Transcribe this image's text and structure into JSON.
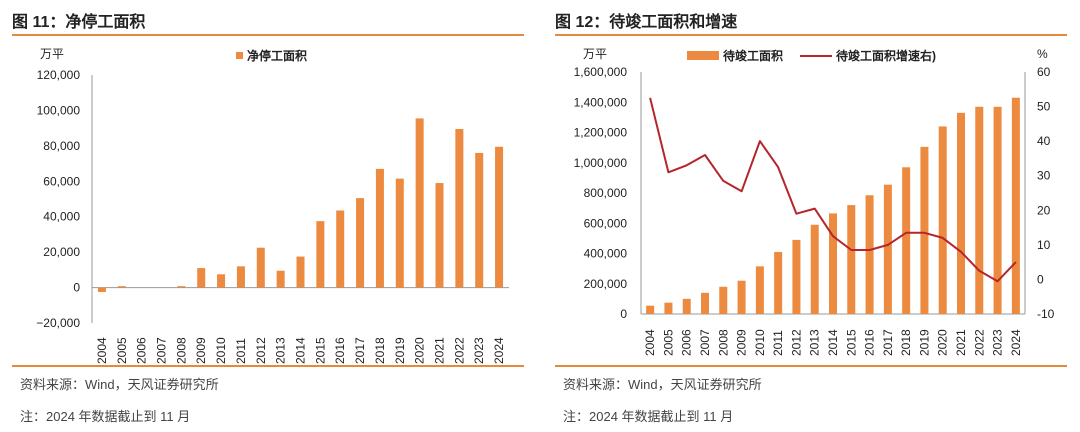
{
  "colors": {
    "bar": "#ec8a3f",
    "line": "#b5262c",
    "accent_rule": "#e58a3a",
    "axis": "#999999"
  },
  "chart_data": [
    {
      "type": "bar",
      "title": "图 11：净停工面积",
      "ylabel": "万平",
      "ylim": [
        -20000,
        120000
      ],
      "yticks": [
        "120,000",
        "100,000",
        "80,000",
        "60,000",
        "40,000",
        "20,000",
        "0",
        "−20,000"
      ],
      "yticks_values": [
        120000,
        100000,
        80000,
        60000,
        40000,
        20000,
        0,
        -20000
      ],
      "categories": [
        "2004",
        "2005",
        "2006",
        "2007",
        "2008",
        "2009",
        "2010",
        "2011",
        "2012",
        "2013",
        "2014",
        "2015",
        "2016",
        "2017",
        "2018",
        "2019",
        "2020",
        "2021",
        "2022",
        "2023",
        "2024"
      ],
      "series": [
        {
          "name": "净停工面积",
          "values": [
            -2500,
            800,
            0,
            0,
            800,
            11000,
            7500,
            12000,
            22500,
            9500,
            17500,
            37500,
            43500,
            50500,
            67000,
            61500,
            95500,
            59000,
            89500,
            76000,
            79500
          ]
        }
      ],
      "legend": [
        "净停工面积"
      ],
      "source": "资料来源：Wind，天风证券研究所",
      "note": "注：2024 年数据截止到 11 月"
    },
    {
      "type": "bar+line",
      "title": "图 12：待竣工面积和增速",
      "ylabel": "万平",
      "ylabel_right": "%",
      "ylim": [
        0,
        1600000
      ],
      "ylim_right": [
        -10,
        60
      ],
      "yticks": [
        "1,600,000",
        "1,400,000",
        "1,200,000",
        "1,000,000",
        "800,000",
        "600,000",
        "400,000",
        "200,000",
        "0"
      ],
      "yticks_values": [
        1600000,
        1400000,
        1200000,
        1000000,
        800000,
        600000,
        400000,
        200000,
        0
      ],
      "yticks_right": [
        "60",
        "50",
        "40",
        "30",
        "20",
        "10",
        "0",
        "-10"
      ],
      "yticks_right_values": [
        60,
        50,
        40,
        30,
        20,
        10,
        0,
        -10
      ],
      "categories": [
        "2004",
        "2005",
        "2006",
        "2007",
        "2008",
        "2009",
        "2010",
        "2011",
        "2012",
        "2013",
        "2014",
        "2015",
        "2016",
        "2017",
        "2018",
        "2019",
        "2020",
        "2021",
        "2022",
        "2023",
        "2024"
      ],
      "series": [
        {
          "name": "待竣工面积",
          "type": "bar",
          "axis": "left",
          "values": [
            55000,
            75000,
            100000,
            140000,
            180000,
            220000,
            315000,
            410000,
            490000,
            590000,
            665000,
            720000,
            785000,
            855000,
            970000,
            1105000,
            1240000,
            1330000,
            1370000,
            1370000,
            1430000
          ]
        },
        {
          "name": "待竣工面积增速右)",
          "type": "line",
          "axis": "right",
          "values": [
            52.5,
            31,
            33,
            36,
            28.5,
            25.5,
            40,
            32.5,
            19,
            20.5,
            12.5,
            8.5,
            8.5,
            10,
            13.5,
            13.5,
            12,
            8,
            2.5,
            -0.5,
            5
          ]
        }
      ],
      "legend": [
        "待竣工面积",
        "待竣工面积增速右)"
      ],
      "source": "资料来源：Wind，天风证券研究所",
      "note": "注：2024 年数据截止到 11 月"
    }
  ]
}
